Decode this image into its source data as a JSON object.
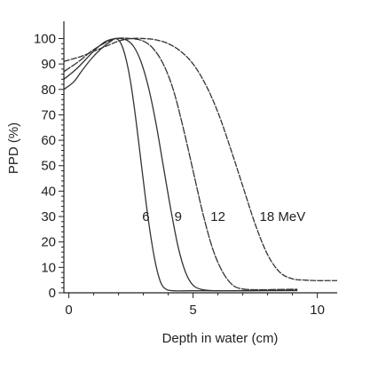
{
  "chart_data": {
    "type": "line",
    "title": "",
    "xlabel": "Depth in water (cm)",
    "ylabel": "PPD (%)",
    "xlim": [
      -0.2,
      10.8
    ],
    "ylim": [
      0,
      104
    ],
    "x_ticks": [
      0,
      5,
      10
    ],
    "y_ticks": [
      0,
      10,
      20,
      30,
      40,
      50,
      60,
      70,
      80,
      90,
      100
    ],
    "grid": false,
    "legend": "none",
    "line_color": "#333333",
    "series": [
      {
        "name": "6",
        "x": [
          -0.2,
          0.2,
          0.5,
          0.9,
          1.3,
          1.7,
          1.9,
          2.1,
          2.3,
          2.5,
          2.7,
          2.9,
          3.1,
          3.3,
          3.5,
          3.7,
          3.9,
          4.2,
          5.0,
          7.0,
          9.2
        ],
        "y": [
          80,
          83,
          87,
          92,
          96,
          99,
          100,
          98,
          92,
          82,
          68,
          52,
          36,
          22,
          11,
          4,
          1.5,
          0.8,
          0.8,
          0.8,
          0.9
        ]
      },
      {
        "name": "9",
        "x": [
          -0.2,
          0.3,
          0.7,
          1.1,
          1.5,
          1.9,
          2.3,
          2.6,
          2.9,
          3.2,
          3.5,
          3.8,
          4.1,
          4.4,
          4.7,
          5.0,
          5.4,
          6.0,
          7.5,
          9.2
        ],
        "y": [
          84,
          88,
          92,
          96,
          99,
          100,
          99.5,
          97,
          91,
          81,
          67,
          50,
          33,
          18,
          8,
          3,
          1.2,
          0.8,
          0.9,
          1.0
        ]
      },
      {
        "name": "12",
        "x": [
          -0.2,
          0.4,
          0.9,
          1.4,
          1.9,
          2.5,
          3.0,
          3.4,
          3.8,
          4.2,
          4.6,
          5.0,
          5.4,
          5.8,
          6.2,
          6.6,
          7.0,
          7.6,
          8.4,
          9.2
        ],
        "y": [
          87,
          91,
          95,
          98,
          100,
          100,
          99,
          96,
          90,
          80,
          65,
          48,
          31,
          17,
          8,
          3,
          1.5,
          1.2,
          1.3,
          1.4
        ]
      },
      {
        "name": "18 MeV",
        "x": [
          -0.2,
          0.5,
          1.0,
          1.5,
          2.0,
          2.5,
          3.0,
          3.5,
          4.0,
          4.5,
          5.0,
          5.5,
          6.0,
          6.5,
          7.0,
          7.5,
          8.0,
          8.5,
          9.0,
          9.5,
          10.0,
          10.5,
          10.8
        ],
        "y": [
          91,
          93,
          95,
          97,
          99,
          100,
          100,
          99.5,
          98,
          95,
          90,
          82,
          71,
          57,
          42,
          27,
          15,
          8,
          5.5,
          5,
          4.8,
          4.8,
          4.8
        ]
      }
    ],
    "annotations": [
      {
        "text": "6",
        "x": 3.1,
        "y": 30
      },
      {
        "text": "9",
        "x": 4.4,
        "y": 30
      },
      {
        "text": "12",
        "x": 6.0,
        "y": 30
      },
      {
        "text": "18 MeV",
        "x": 8.6,
        "y": 30
      }
    ]
  }
}
